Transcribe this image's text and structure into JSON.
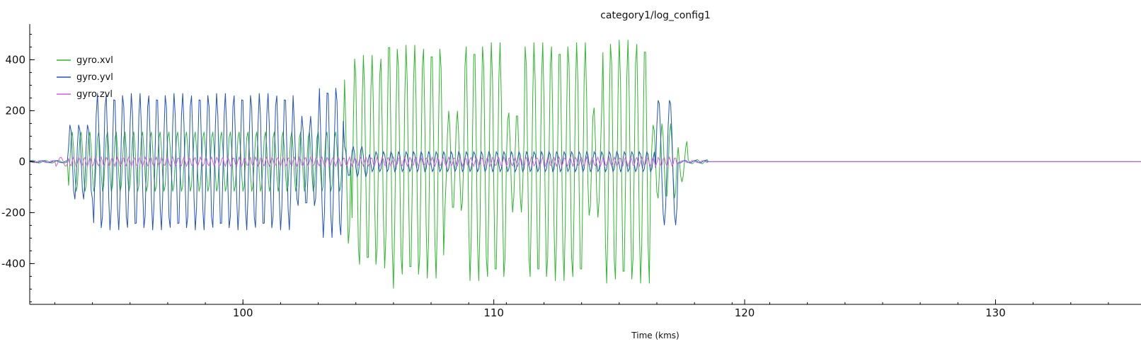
{
  "chart_data": {
    "type": "line",
    "title": "category1/log_config1",
    "xlabel": "Time (kms)",
    "ylabel": "",
    "xlim": [
      91.5,
      135.8
    ],
    "ylim": [
      -560,
      540
    ],
    "x_ticks": [
      100,
      110,
      120,
      130
    ],
    "x_tick_labels": [
      "100",
      "110",
      "120",
      "130"
    ],
    "x_minor_step": 1.5,
    "y_ticks": [
      -400,
      -200,
      0,
      200,
      400
    ],
    "y_tick_labels": [
      "-400",
      "-200",
      "0",
      "200",
      "400"
    ],
    "y_minor_step": 50,
    "grid": false,
    "legend_position": "top-left",
    "sample_step": 0.05,
    "series": [
      {
        "name": "gyro.xvl",
        "color": "#2db82d",
        "segments": [
          {
            "start": 91.5,
            "end": 93.0,
            "amp": 5,
            "period": 0.5
          },
          {
            "start": 93.0,
            "end": 104.0,
            "amp": 120,
            "period": 0.35
          },
          {
            "start": 104.0,
            "end": 104.3,
            "amp": 330,
            "period": 0.35
          },
          {
            "start": 104.3,
            "end": 105.7,
            "amp": 420,
            "period": 0.34
          },
          {
            "start": 105.7,
            "end": 106.0,
            "amp": 500,
            "period": 0.34
          },
          {
            "start": 106.0,
            "end": 108.0,
            "amp": 460,
            "period": 0.34
          },
          {
            "start": 108.0,
            "end": 108.8,
            "amp": 200,
            "period": 0.34
          },
          {
            "start": 108.8,
            "end": 110.5,
            "amp": 470,
            "period": 0.34
          },
          {
            "start": 110.5,
            "end": 111.2,
            "amp": 200,
            "period": 0.34
          },
          {
            "start": 111.2,
            "end": 113.7,
            "amp": 470,
            "period": 0.34
          },
          {
            "start": 113.7,
            "end": 114.3,
            "amp": 220,
            "period": 0.34
          },
          {
            "start": 114.3,
            "end": 116.2,
            "amp": 480,
            "period": 0.34
          },
          {
            "start": 116.2,
            "end": 117.3,
            "amp": 150,
            "period": 0.34
          },
          {
            "start": 117.3,
            "end": 117.7,
            "amp": 80,
            "period": 0.4
          },
          {
            "start": 117.7,
            "end": 118.5,
            "amp": 8,
            "period": 0.4
          },
          {
            "start": 118.5,
            "end": 135.8,
            "amp": 0,
            "period": 1
          }
        ]
      },
      {
        "name": "gyro.yvl",
        "color": "#1f52c4",
        "segments": [
          {
            "start": 91.5,
            "end": 93.0,
            "amp": 4,
            "period": 0.5
          },
          {
            "start": 93.0,
            "end": 94.0,
            "amp": 150,
            "period": 0.35
          },
          {
            "start": 94.0,
            "end": 102.0,
            "amp": 270,
            "period": 0.34
          },
          {
            "start": 102.0,
            "end": 103.0,
            "amp": 180,
            "period": 0.34
          },
          {
            "start": 103.0,
            "end": 104.0,
            "amp": 300,
            "period": 0.34
          },
          {
            "start": 104.0,
            "end": 105.0,
            "amp": 60,
            "period": 0.34
          },
          {
            "start": 105.0,
            "end": 116.4,
            "amp": 40,
            "period": 0.3
          },
          {
            "start": 116.4,
            "end": 117.3,
            "amp": 250,
            "period": 0.45
          },
          {
            "start": 117.3,
            "end": 118.5,
            "amp": 5,
            "period": 0.4
          },
          {
            "start": 118.5,
            "end": 135.8,
            "amp": 0,
            "period": 1
          }
        ]
      },
      {
        "name": "gyro.zvl",
        "color": "#d35fe0",
        "segments": [
          {
            "start": 91.5,
            "end": 92.5,
            "amp": 4,
            "period": 0.5
          },
          {
            "start": 92.5,
            "end": 93.0,
            "amp": 18,
            "period": 0.4
          },
          {
            "start": 93.0,
            "end": 117.3,
            "amp": 18,
            "period": 0.22
          },
          {
            "start": 117.3,
            "end": 118.5,
            "amp": 4,
            "period": 0.4
          },
          {
            "start": 118.5,
            "end": 135.8,
            "amp": 0,
            "period": 1
          }
        ]
      }
    ]
  }
}
